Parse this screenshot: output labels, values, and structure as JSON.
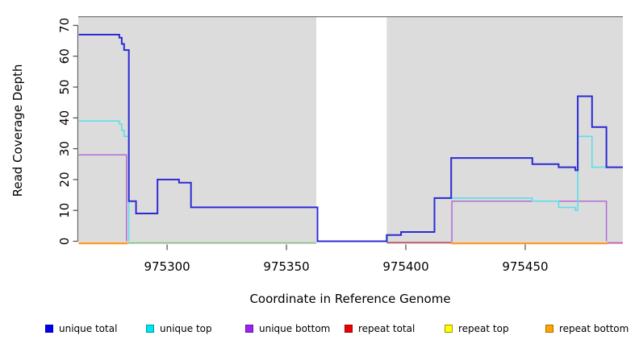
{
  "chart_data": {
    "type": "line",
    "subtype": "step-coverage",
    "title": "",
    "xlabel": "Coordinate in Reference Genome",
    "ylabel": "Read Coverage Depth",
    "background": "#DCDCDC",
    "top_border_color": "#7F7F7F",
    "x_axis": {
      "domain": [
        975262.8,
        975490.9
      ],
      "ticks": [
        975300,
        975350,
        975400,
        975450
      ]
    },
    "y_axis": {
      "domain": [
        0,
        73
      ],
      "ticks": [
        0,
        10,
        20,
        30,
        40,
        50,
        60,
        70
      ]
    },
    "mask_region": {
      "from": 975362.5,
      "to": 975392,
      "color": "#FFFFFF",
      "meaning": "no-data gap"
    },
    "series": [
      {
        "name": "unique total",
        "color": "#2B2BD5",
        "width": 2,
        "runs": [
          {
            "steps": [
              [
                975263,
                67
              ],
              [
                975280,
                66
              ],
              [
                975281,
                64
              ],
              [
                975282,
                62
              ],
              [
                975284,
                13
              ],
              [
                975287,
                9
              ],
              [
                975296,
                20
              ],
              [
                975305,
                19
              ],
              [
                975310,
                11
              ],
              [
                975363,
                0
              ],
              [
                975392,
                2
              ],
              [
                975398,
                3
              ],
              [
                975412,
                14
              ],
              [
                975419,
                27
              ],
              [
                975453,
                25
              ],
              [
                975464,
                24
              ],
              [
                975471,
                23
              ],
              [
                975472,
                47
              ],
              [
                975478,
                37
              ],
              [
                975484,
                24
              ]
            ],
            "end": 975491
          }
        ]
      },
      {
        "name": "unique top",
        "color": "#5CDEEA",
        "width": 1.6,
        "runs": [
          {
            "steps": [
              [
                975263,
                39
              ],
              [
                975280,
                38
              ],
              [
                975281,
                36
              ],
              [
                975282,
                34
              ],
              [
                975284,
                0
              ]
            ],
            "end": 975284
          },
          {
            "steps": [
              [
                975392,
                0
              ],
              [
                975392.3,
                2
              ],
              [
                975398,
                3
              ],
              [
                975412,
                14
              ],
              [
                975453,
                13
              ],
              [
                975464,
                11
              ],
              [
                975471,
                10
              ],
              [
                975472,
                34
              ],
              [
                975478,
                24
              ]
            ],
            "end": 975491
          }
        ]
      },
      {
        "name": "unique bottom",
        "color": "#AF6BD6",
        "width": 1.5,
        "runs": [
          {
            "steps": [
              [
                975263,
                28
              ],
              [
                975283,
                0
              ]
            ],
            "end": 975283
          },
          {
            "steps": [
              [
                975419,
                0
              ],
              [
                975419.3,
                13
              ],
              [
                975484,
                0
              ]
            ],
            "end": 975484
          }
        ]
      }
    ],
    "zero_line_segments": [
      {
        "color": "#FF9C20",
        "from": 975263,
        "to": 975283.5,
        "width": 2.2,
        "dy": 2.6
      },
      {
        "color": "#84C884",
        "from": 975283.5,
        "to": 975362.5,
        "width": 1.6,
        "dy": 2.0
      },
      {
        "color": "#C2596A",
        "from": 975392,
        "to": 975419,
        "width": 1.8,
        "dy": 1.6
      },
      {
        "color": "#FF9C20",
        "from": 975419,
        "to": 975484.5,
        "width": 2.2,
        "dy": 2.6
      },
      {
        "color": "#C45FB5",
        "from": 975484.5,
        "to": 975491,
        "width": 1.8,
        "dy": 2.0
      }
    ],
    "legend": [
      {
        "label": "unique total",
        "fill": "#0000EE",
        "border": "#0000A6"
      },
      {
        "label": "unique top",
        "fill": "#00E5EE",
        "border": "#00989E"
      },
      {
        "label": "unique bottom",
        "fill": "#A020F0",
        "border": "#6C16A2"
      },
      {
        "label": "repeat total",
        "fill": "#EE0000",
        "border": "#9E0000"
      },
      {
        "label": "repeat top",
        "fill": "#FFFF00",
        "border": "#9A9A00"
      },
      {
        "label": "repeat bottom",
        "fill": "#FFA500",
        "border": "#AA6E00"
      }
    ]
  }
}
